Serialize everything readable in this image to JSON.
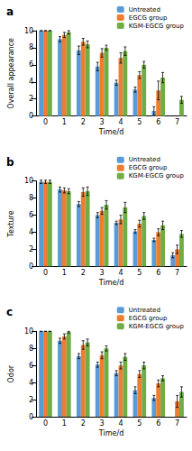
{
  "chart_data": [
    {
      "type": "bar",
      "title": "a",
      "x_label": "Time/d",
      "y_label": "Overall appearance",
      "categories": [
        "0",
        "1",
        "2",
        "3",
        "4",
        "5",
        "6",
        "7"
      ],
      "ylim": [
        0,
        10
      ],
      "yticks": [
        0,
        2,
        4,
        6,
        8,
        10
      ],
      "grid": false,
      "legend": "top-right",
      "series": [
        {
          "name": "Untreated",
          "color": "#5B9BD5",
          "values": [
            10,
            9.0,
            7.7,
            5.8,
            3.9,
            3.1,
            0.6,
            null
          ],
          "errors": [
            0,
            0.3,
            0.5,
            0.5,
            0.3,
            0.3,
            0.5,
            null
          ]
        },
        {
          "name": "EGCG group",
          "color": "#ED7D31",
          "values": [
            10,
            9.5,
            8.7,
            7.4,
            6.8,
            4.8,
            3.0,
            null
          ],
          "errors": [
            0,
            0.3,
            0.4,
            0.5,
            0.6,
            0.4,
            1.1,
            null
          ]
        },
        {
          "name": "KGM-EGCG group",
          "color": "#70AD47",
          "values": [
            10,
            9.8,
            8.4,
            8.0,
            7.6,
            6.0,
            4.5,
            1.9
          ],
          "errors": [
            0,
            0.2,
            0.4,
            0.3,
            0.5,
            0.4,
            0.6,
            0.4
          ]
        }
      ]
    },
    {
      "type": "bar",
      "title": "b",
      "x_label": "Time/d",
      "y_label": "Texture",
      "categories": [
        "0",
        "1",
        "2",
        "3",
        "4",
        "5",
        "6",
        "7"
      ],
      "ylim": [
        0,
        10
      ],
      "yticks": [
        0,
        2,
        4,
        6,
        8,
        10
      ],
      "grid": false,
      "legend": "top-right",
      "series": [
        {
          "name": "Untreated",
          "color": "#5B9BD5",
          "values": [
            9.9,
            9.0,
            7.3,
            6.0,
            5.1,
            4.1,
            3.1,
            1.3
          ],
          "errors": [
            0.2,
            0.3,
            0.3,
            0.3,
            0.2,
            0.2,
            0.2,
            0.3
          ]
        },
        {
          "name": "EGCG group",
          "color": "#ED7D31",
          "values": [
            9.9,
            8.9,
            8.7,
            6.5,
            5.5,
            5.0,
            4.0,
            2.0
          ],
          "errors": [
            0.2,
            0.3,
            0.5,
            0.4,
            0.5,
            0.4,
            0.4,
            0.5
          ]
        },
        {
          "name": "KGM-EGCG group",
          "color": "#70AD47",
          "values": [
            9.9,
            8.8,
            8.8,
            7.2,
            6.9,
            5.9,
            4.8,
            3.8
          ],
          "errors": [
            0.2,
            0.3,
            0.5,
            0.5,
            0.6,
            0.4,
            0.5,
            0.4
          ]
        }
      ]
    },
    {
      "type": "bar",
      "title": "c",
      "x_label": "Time/d",
      "y_label": "Odor",
      "categories": [
        "0",
        "1",
        "2",
        "3",
        "4",
        "5",
        "6",
        "7"
      ],
      "ylim": [
        0,
        10
      ],
      "yticks": [
        0,
        2,
        4,
        6,
        8,
        10
      ],
      "grid": false,
      "legend": "top-right",
      "series": [
        {
          "name": "Untreated",
          "color": "#5B9BD5",
          "values": [
            10,
            8.9,
            7.1,
            6.1,
            5.1,
            3.1,
            2.2,
            null
          ],
          "errors": [
            0,
            0.3,
            0.3,
            0.3,
            0.3,
            0.4,
            0.3,
            null
          ]
        },
        {
          "name": "EGCG group",
          "color": "#ED7D31",
          "values": [
            10,
            9.4,
            8.4,
            7.2,
            6.0,
            5.0,
            3.9,
            1.8
          ],
          "errors": [
            0,
            0.3,
            0.5,
            0.4,
            0.4,
            0.4,
            0.4,
            0.7
          ]
        },
        {
          "name": "KGM-EGCG group",
          "color": "#70AD47",
          "values": [
            10,
            9.9,
            8.7,
            8.0,
            7.0,
            6.0,
            4.5,
            2.9
          ],
          "errors": [
            0,
            0.1,
            0.4,
            0.3,
            0.4,
            0.4,
            0.3,
            0.6
          ]
        }
      ]
    }
  ]
}
